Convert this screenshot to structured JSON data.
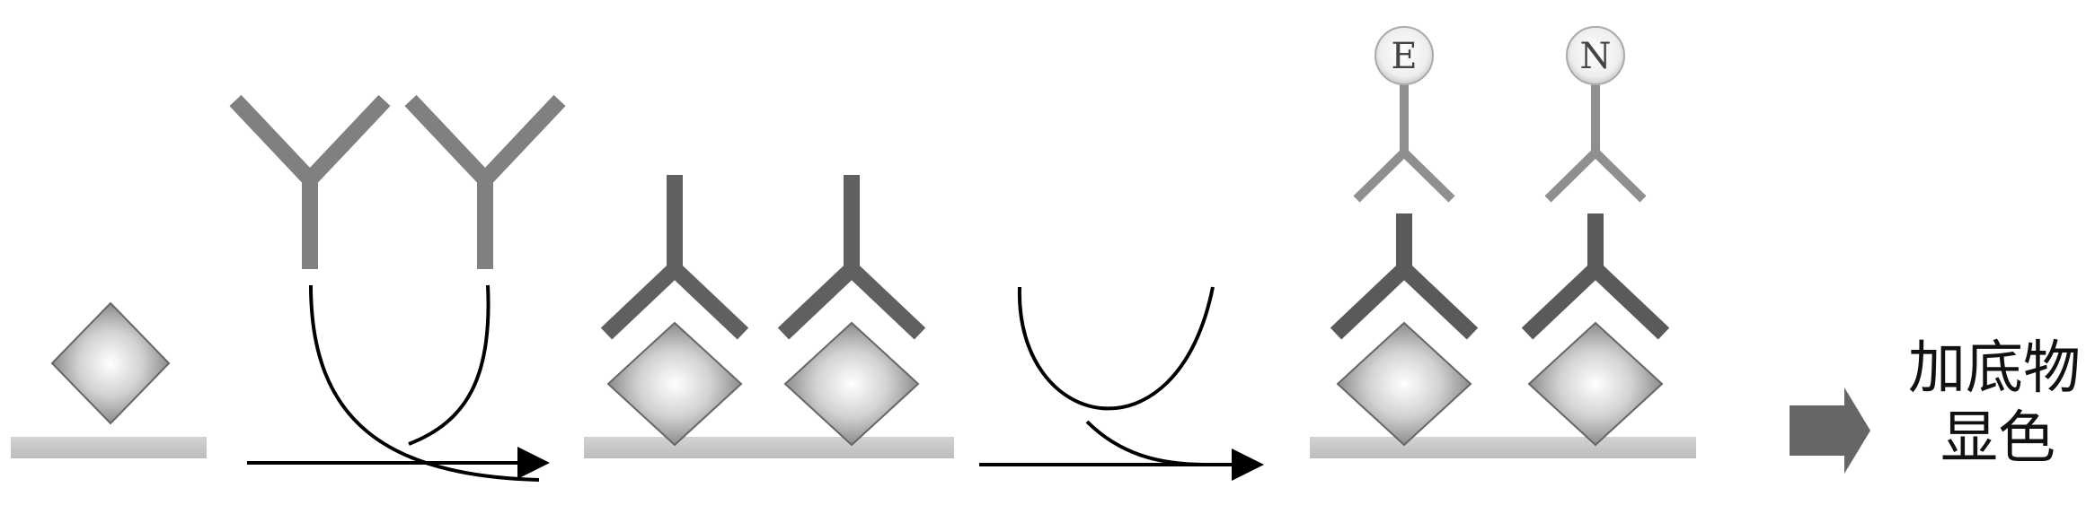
{
  "enzyme_labels": {
    "e": "E",
    "n": "N"
  },
  "result_label": {
    "line1": "加底物",
    "line2": "显色"
  },
  "colors": {
    "surface": "#c8c8c8",
    "antigen_edge": "#6d6d6d",
    "antigen_center": "#ffffff",
    "antibody_dark": "#5d5d5d",
    "antibody_mid": "#7a7a7a",
    "antibody_light": "#8f8f8f",
    "arrow": "#000000",
    "result_arrow": "#666666",
    "badge_fill": "#f2f2f2"
  }
}
